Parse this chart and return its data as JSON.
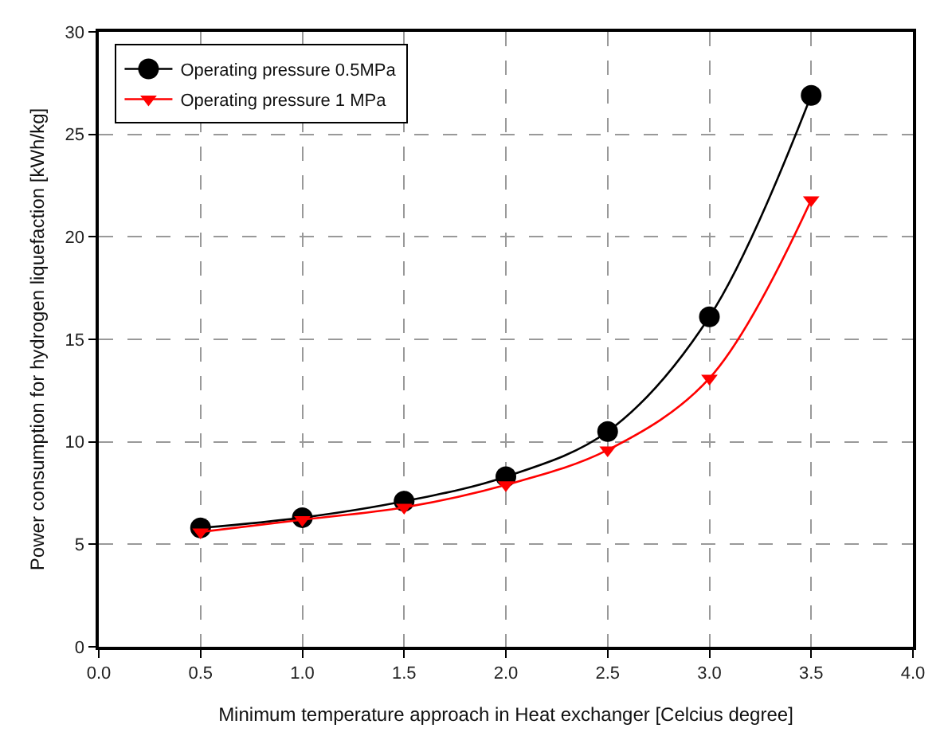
{
  "chart_data": {
    "type": "line",
    "xlabel": "Minimum temperature approach in Heat exchanger [Celcius degree]",
    "ylabel": "Power consumption for hydrogen liquefaction [kWh/kg]",
    "x": [
      0.5,
      1.0,
      1.5,
      2.0,
      2.5,
      3.0,
      3.5
    ],
    "series": [
      {
        "name": "Operating pressure 0.5MPa",
        "color": "#000000",
        "marker": "circle",
        "values": [
          5.8,
          6.3,
          7.1,
          8.3,
          10.5,
          16.1,
          26.9
        ]
      },
      {
        "name": "Operating pressure 1 MPa",
        "color": "#ff0000",
        "marker": "triangle",
        "values": [
          5.6,
          6.2,
          6.8,
          7.9,
          9.6,
          13.1,
          21.8
        ]
      }
    ],
    "xlim": [
      0,
      4
    ],
    "xticks": [
      {
        "value": 0,
        "label": "0.0"
      },
      {
        "value": 0.5,
        "label": "0.5"
      },
      {
        "value": 1,
        "label": "1.0"
      },
      {
        "value": 1.5,
        "label": "1.5"
      },
      {
        "value": 2,
        "label": "2.0"
      },
      {
        "value": 2.5,
        "label": "2.5"
      },
      {
        "value": 3,
        "label": "3.0"
      },
      {
        "value": 3.5,
        "label": "3.5"
      },
      {
        "value": 4,
        "label": "4.0"
      }
    ],
    "ylim": [
      0,
      30
    ],
    "yticks": [
      0,
      5,
      10,
      15,
      20,
      25,
      30
    ],
    "grid": true,
    "legend": "top left",
    "line_style": "solid"
  }
}
